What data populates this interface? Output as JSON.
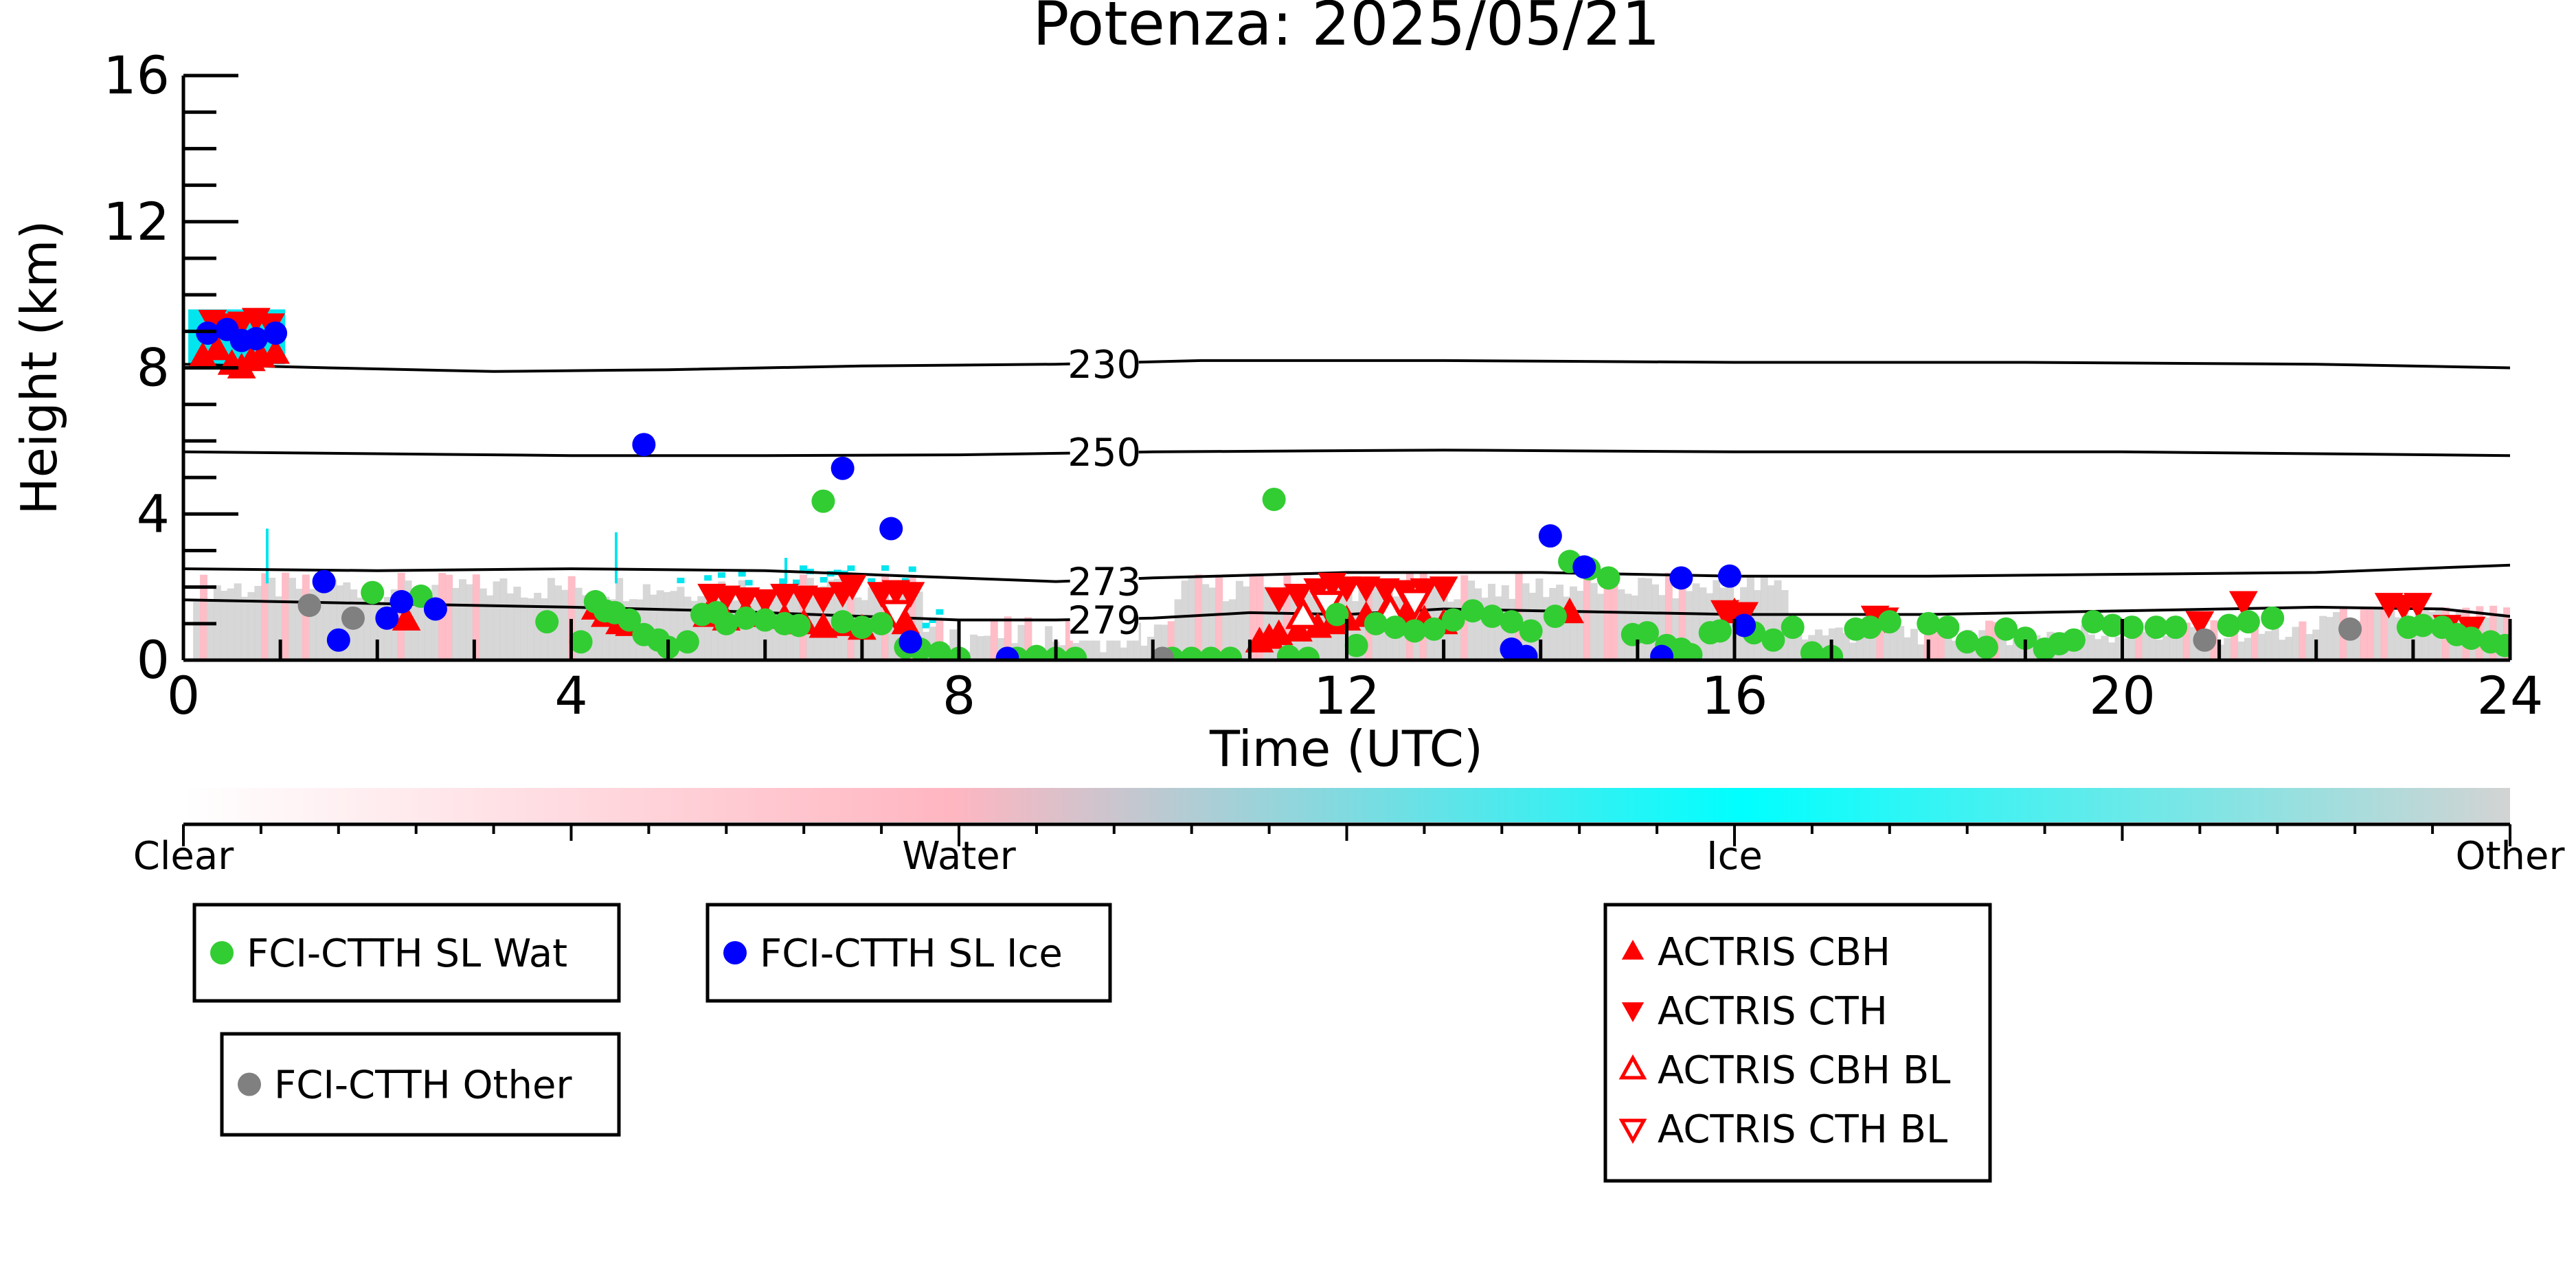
{
  "chart_data": {
    "type": "scatter",
    "title": "Potenza: 2025/05/21",
    "xlabel": "Time (UTC)",
    "ylabel": "Height (km)",
    "xlim": [
      0,
      24
    ],
    "ylim": [
      0,
      16
    ],
    "x_ticks": [
      0,
      4,
      8,
      12,
      16,
      20,
      24
    ],
    "x_tick_labels": [
      "0",
      "4",
      "8",
      "12",
      "16",
      "20",
      "24"
    ],
    "y_ticks": [
      0,
      4,
      8,
      12,
      16
    ],
    "y_tick_labels": [
      "0",
      "4",
      "8",
      "12",
      "16"
    ],
    "grid": false,
    "colorbar": {
      "labels": [
        "Clear",
        "Water",
        "Ice",
        "Other"
      ],
      "colors": [
        "#ffffff",
        "#ffb6c1",
        "#00ffff",
        "#d3d3d3"
      ]
    },
    "contours": [
      {
        "label": "230",
        "points": [
          [
            0,
            8.1
          ],
          [
            1.5,
            8.0
          ],
          [
            3.2,
            7.9
          ],
          [
            5,
            7.95
          ],
          [
            7,
            8.05
          ],
          [
            9,
            8.1
          ],
          [
            10.5,
            8.2
          ],
          [
            13,
            8.2
          ],
          [
            16,
            8.15
          ],
          [
            19,
            8.15
          ],
          [
            22,
            8.1
          ],
          [
            24,
            8.0
          ]
        ]
      },
      {
        "label": "250",
        "points": [
          [
            0,
            5.7
          ],
          [
            2,
            5.65
          ],
          [
            4,
            5.6
          ],
          [
            6,
            5.6
          ],
          [
            8,
            5.62
          ],
          [
            10,
            5.7
          ],
          [
            13,
            5.75
          ],
          [
            16,
            5.7
          ],
          [
            20,
            5.7
          ],
          [
            24,
            5.6
          ]
        ]
      },
      {
        "label": "273",
        "points": [
          [
            0,
            2.5
          ],
          [
            2,
            2.45
          ],
          [
            4,
            2.5
          ],
          [
            6,
            2.45
          ],
          [
            7.5,
            2.3
          ],
          [
            9,
            2.15
          ],
          [
            10,
            2.25
          ],
          [
            12,
            2.4
          ],
          [
            14,
            2.4
          ],
          [
            16,
            2.3
          ],
          [
            18,
            2.3
          ],
          [
            20,
            2.35
          ],
          [
            22,
            2.4
          ],
          [
            24,
            2.6
          ]
        ]
      },
      {
        "label": "279",
        "points": [
          [
            0,
            1.65
          ],
          [
            2,
            1.55
          ],
          [
            4,
            1.45
          ],
          [
            5.5,
            1.35
          ],
          [
            7,
            1.2
          ],
          [
            8,
            1.1
          ],
          [
            9,
            1.1
          ],
          [
            10,
            1.15
          ],
          [
            11,
            1.3
          ],
          [
            12,
            1.25
          ],
          [
            13,
            1.4
          ],
          [
            14,
            1.35
          ],
          [
            15,
            1.3
          ],
          [
            16,
            1.25
          ],
          [
            18,
            1.25
          ],
          [
            20,
            1.35
          ],
          [
            22,
            1.45
          ],
          [
            23.3,
            1.4
          ],
          [
            24,
            1.2
          ]
        ]
      }
    ],
    "series": [
      {
        "name": "FCI-CTTH SL Wat",
        "color": "#32cd32",
        "marker": "circle",
        "x": [
          1.95,
          2.45,
          3.75,
          4.1,
          4.25,
          4.35,
          4.45,
          4.6,
          4.75,
          4.9,
          5.0,
          5.2,
          5.35,
          5.5,
          5.6,
          5.8,
          6.0,
          6.2,
          6.35,
          6.6,
          6.8,
          7.0,
          7.2,
          7.45,
          7.6,
          7.8,
          8.0,
          8.6,
          8.8,
          9.0,
          9.2,
          10.2,
          10.4,
          10.6,
          10.8,
          11.25,
          11.4,
          11.6,
          11.9,
          12.1,
          12.3,
          12.5,
          12.7,
          12.9,
          13.1,
          13.3,
          13.5,
          13.7,
          13.9,
          14.15,
          14.3,
          14.5,
          14.7,
          14.95,
          15.1,
          15.3,
          15.45,
          15.55,
          15.75,
          15.85,
          16.2,
          16.4,
          16.6,
          16.8,
          17.0,
          17.25,
          17.4,
          17.6,
          18.0,
          18.2,
          18.4,
          18.6,
          18.8,
          19.0,
          19.2,
          19.35,
          19.5,
          19.7,
          19.9,
          20.1,
          20.35,
          20.55,
          21.1,
          21.3,
          21.55,
          22.95,
          23.1,
          23.3,
          23.45,
          23.6,
          23.8,
          23.95,
          24.1
        ],
        "y": [
          1.85,
          1.75,
          1.05,
          0.5,
          1.6,
          1.35,
          1.3,
          1.1,
          0.7,
          0.55,
          0.35,
          0.5,
          1.25,
          1.3,
          1.0,
          1.15,
          1.1,
          1.0,
          0.95,
          4.35,
          1.05,
          0.9,
          1.0,
          0.35,
          0.3,
          0.2,
          0.05,
          0.05,
          0.1,
          0.05,
          0.05,
          0.05,
          0.05,
          0.05,
          0.05,
          4.4,
          0.1,
          0.05,
          1.25,
          0.4,
          1.0,
          0.9,
          0.8,
          0.85,
          1.1,
          1.35,
          1.2,
          1.05,
          0.8,
          1.2,
          2.7,
          2.5,
          2.25,
          0.7,
          0.75,
          0.4,
          0.3,
          0.15,
          0.75,
          0.8,
          0.75,
          0.55,
          0.9,
          0.2,
          0.1,
          0.85,
          0.9,
          1.05,
          1.0,
          0.9,
          0.5,
          0.35,
          0.85,
          0.6,
          0.3,
          0.45,
          0.55,
          1.05,
          0.95,
          0.9,
          0.9,
          0.9,
          0.95,
          1.05,
          1.15,
          0.9,
          0.95,
          0.9,
          0.7,
          0.6,
          0.5,
          0.4,
          0.3
        ]
      },
      {
        "name": "FCI-CTTH SL Ice",
        "color": "#0000ff",
        "marker": "circle",
        "x": [
          0.25,
          0.45,
          0.6,
          0.75,
          0.95,
          1.45,
          1.6,
          2.1,
          2.25,
          2.6,
          4.75,
          6.8,
          7.3,
          7.5,
          8.5,
          13.7,
          13.85,
          14.1,
          14.45,
          15.25,
          15.45,
          15.95,
          16.1
        ],
        "y": [
          8.95,
          9.05,
          8.75,
          8.8,
          8.95,
          2.15,
          0.55,
          1.15,
          1.6,
          1.4,
          5.9,
          5.25,
          3.6,
          0.5,
          0.05,
          0.3,
          0.1,
          3.4,
          2.55,
          0.1,
          2.25,
          2.3,
          0.95
        ]
      },
      {
        "name": "FCI-CTTH Other",
        "color": "#808080",
        "marker": "circle",
        "x": [
          1.3,
          1.75,
          10.1,
          20.85,
          22.35
        ],
        "y": [
          1.5,
          1.15,
          0.05,
          0.55,
          0.85
        ]
      },
      {
        "name": "ACTRIS CBH",
        "color": "#ff0000",
        "marker": "triangle-up",
        "filled": true,
        "x": [
          0.2,
          0.35,
          0.5,
          0.6,
          0.7,
          0.8,
          0.95,
          2.3,
          4.25,
          4.35,
          4.5,
          4.6,
          5.4,
          5.6,
          5.8,
          6.0,
          6.2,
          6.4,
          6.6,
          6.8,
          7.0,
          7.3,
          7.45,
          11.1,
          11.2,
          11.3,
          11.5,
          11.7,
          11.85,
          12.0,
          12.2,
          12.4,
          12.6,
          12.8,
          13.0,
          14.3,
          16.0
        ],
        "y": [
          8.3,
          8.5,
          8.1,
          8.0,
          8.2,
          8.3,
          8.4,
          1.1,
          1.4,
          1.2,
          1.0,
          0.95,
          1.2,
          1.1,
          1.3,
          1.2,
          1.15,
          1.0,
          0.9,
          0.95,
          0.85,
          1.2,
          1.0,
          0.5,
          0.6,
          0.7,
          0.8,
          0.9,
          1.0,
          1.1,
          1.2,
          1.3,
          1.2,
          1.1,
          1.0,
          1.3,
          1.3
        ]
      },
      {
        "name": "ACTRIS CTH",
        "color": "#ff0000",
        "marker": "triangle-down",
        "filled": true,
        "x": [
          0.3,
          0.45,
          0.6,
          0.75,
          0.9,
          5.45,
          5.6,
          5.8,
          6.0,
          6.2,
          6.4,
          6.6,
          6.8,
          6.9,
          7.2,
          7.35,
          7.5,
          11.3,
          11.5,
          11.7,
          11.85,
          12.0,
          12.2,
          12.4,
          12.6,
          12.8,
          13.0,
          15.9,
          16.1,
          17.45,
          17.55,
          20.8,
          21.25,
          22.75,
          22.9,
          23.05,
          23.35,
          23.6
        ],
        "y": [
          9.3,
          9.2,
          9.25,
          9.35,
          9.2,
          1.8,
          1.75,
          1.7,
          1.65,
          1.8,
          1.75,
          1.7,
          1.85,
          2.05,
          1.85,
          1.9,
          1.85,
          1.7,
          1.8,
          1.95,
          2.1,
          2.0,
          2.0,
          1.95,
          1.9,
          1.95,
          2.0,
          1.35,
          1.3,
          1.2,
          1.15,
          1.05,
          1.6,
          1.55,
          1.5,
          1.55,
          0.95,
          0.9
        ]
      },
      {
        "name": "ACTRIS CBH BL",
        "color": "#ff0000",
        "marker": "triangle-up",
        "filled": false,
        "x": [
          11.55,
          12.45
        ],
        "y": [
          1.2,
          1.3
        ]
      },
      {
        "name": "ACTRIS CTH BL",
        "color": "#ff0000",
        "marker": "triangle-down",
        "filled": false,
        "x": [
          7.35,
          11.8,
          12.7
        ],
        "y": [
          1.3,
          1.55,
          1.6
        ]
      }
    ]
  }
}
